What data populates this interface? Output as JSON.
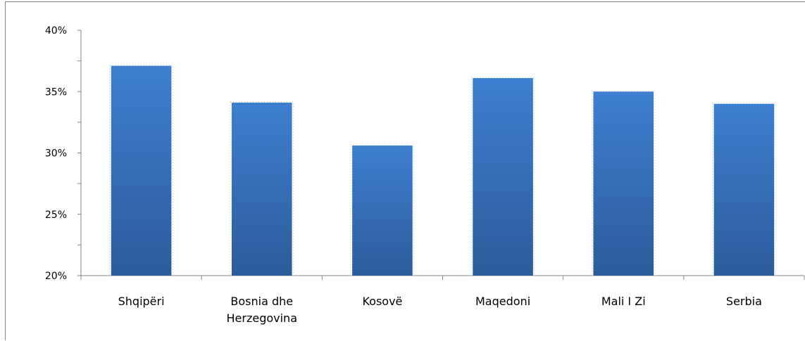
{
  "chart_data": {
    "type": "bar",
    "categories": [
      "Shqipëri",
      "Bosnia dhe Herzegovina",
      "Kosovë",
      "Maqedoni",
      "Mali I Zi",
      "Serbia"
    ],
    "category_lines": [
      [
        "Shqipëri"
      ],
      [
        "Bosnia dhe",
        "Herzegovina"
      ],
      [
        "Kosovë"
      ],
      [
        "Maqedoni"
      ],
      [
        "Mali I Zi"
      ],
      [
        "Serbia"
      ]
    ],
    "values": [
      37.1,
      34.1,
      30.6,
      36.1,
      35.0,
      34.0
    ],
    "y_ticks": [
      {
        "value": 20,
        "label": "20%"
      },
      {
        "value": 25,
        "label": "25%"
      },
      {
        "value": 30,
        "label": "30%"
      },
      {
        "value": 35,
        "label": "35%"
      },
      {
        "value": 40,
        "label": "40%"
      }
    ],
    "ylim": [
      20,
      40
    ],
    "minor_tick_step": 2.5,
    "title": "",
    "xlabel": "",
    "ylabel": "",
    "grid": false,
    "bar_color_top": "#3d7fd0",
    "bar_color_bottom": "#2c5c9a"
  }
}
